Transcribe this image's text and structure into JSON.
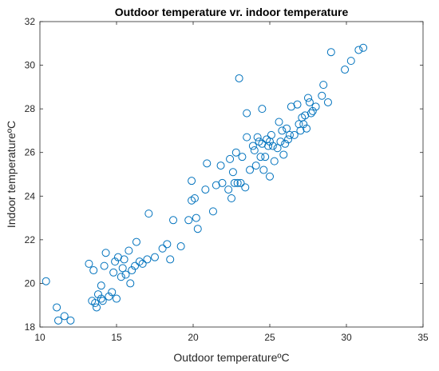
{
  "chart_data": {
    "type": "scatter",
    "title": "Outdoor temperature  vr. indoor temperature",
    "xlabel": "Outdoor temperatureºC",
    "ylabel": "Indoor temperatureºC",
    "xlim": [
      10,
      35
    ],
    "ylim": [
      18,
      32
    ],
    "xticks": [
      10,
      15,
      20,
      25,
      30,
      35
    ],
    "yticks": [
      18,
      20,
      22,
      24,
      26,
      28,
      30,
      32
    ],
    "grid": false,
    "marker_color": "#0072BD",
    "axis_color": "#262626",
    "points": [
      [
        10.4,
        20.1
      ],
      [
        11.1,
        18.9
      ],
      [
        11.2,
        18.3
      ],
      [
        11.6,
        18.5
      ],
      [
        12.0,
        18.3
      ],
      [
        13.2,
        20.9
      ],
      [
        13.4,
        19.2
      ],
      [
        13.5,
        20.6
      ],
      [
        13.6,
        19.1
      ],
      [
        13.7,
        18.9
      ],
      [
        13.8,
        19.5
      ],
      [
        14.0,
        19.3
      ],
      [
        14.0,
        19.9
      ],
      [
        14.1,
        19.2
      ],
      [
        14.2,
        20.8
      ],
      [
        14.3,
        21.4
      ],
      [
        14.5,
        19.4
      ],
      [
        14.7,
        19.6
      ],
      [
        14.8,
        20.5
      ],
      [
        14.9,
        21.0
      ],
      [
        15.0,
        19.3
      ],
      [
        15.1,
        21.2
      ],
      [
        15.3,
        20.3
      ],
      [
        15.4,
        20.7
      ],
      [
        15.5,
        21.1
      ],
      [
        15.6,
        20.4
      ],
      [
        15.8,
        21.5
      ],
      [
        15.9,
        20.0
      ],
      [
        16.0,
        20.6
      ],
      [
        16.2,
        20.8
      ],
      [
        16.3,
        21.9
      ],
      [
        16.5,
        21.0
      ],
      [
        16.7,
        20.9
      ],
      [
        17.0,
        21.1
      ],
      [
        17.1,
        23.2
      ],
      [
        17.5,
        21.2
      ],
      [
        18.0,
        21.6
      ],
      [
        18.3,
        21.8
      ],
      [
        18.5,
        21.1
      ],
      [
        18.7,
        22.9
      ],
      [
        19.2,
        21.7
      ],
      [
        19.7,
        22.9
      ],
      [
        19.9,
        24.7
      ],
      [
        19.9,
        23.8
      ],
      [
        20.1,
        23.9
      ],
      [
        20.2,
        23.0
      ],
      [
        20.3,
        22.5
      ],
      [
        20.8,
        24.3
      ],
      [
        20.9,
        25.5
      ],
      [
        21.3,
        23.3
      ],
      [
        21.5,
        24.5
      ],
      [
        21.8,
        25.4
      ],
      [
        21.9,
        24.6
      ],
      [
        22.3,
        24.3
      ],
      [
        22.4,
        25.7
      ],
      [
        22.5,
        23.9
      ],
      [
        22.6,
        25.1
      ],
      [
        22.7,
        24.6
      ],
      [
        22.8,
        26.0
      ],
      [
        22.9,
        24.6
      ],
      [
        23.0,
        29.4
      ],
      [
        23.1,
        24.6
      ],
      [
        23.2,
        25.8
      ],
      [
        23.4,
        24.4
      ],
      [
        23.5,
        26.7
      ],
      [
        23.5,
        27.8
      ],
      [
        23.7,
        25.2
      ],
      [
        23.9,
        26.3
      ],
      [
        24.0,
        26.1
      ],
      [
        24.1,
        25.4
      ],
      [
        24.2,
        26.7
      ],
      [
        24.3,
        26.5
      ],
      [
        24.4,
        25.8
      ],
      [
        24.5,
        26.4
      ],
      [
        24.5,
        28.0
      ],
      [
        24.6,
        25.2
      ],
      [
        24.7,
        25.8
      ],
      [
        24.8,
        26.6
      ],
      [
        24.9,
        26.3
      ],
      [
        25.0,
        26.5
      ],
      [
        25.0,
        24.9
      ],
      [
        25.1,
        26.8
      ],
      [
        25.2,
        26.3
      ],
      [
        25.3,
        25.6
      ],
      [
        25.5,
        26.2
      ],
      [
        25.6,
        27.4
      ],
      [
        25.7,
        26.5
      ],
      [
        25.8,
        27.0
      ],
      [
        25.9,
        25.9
      ],
      [
        26.0,
        26.4
      ],
      [
        26.1,
        27.1
      ],
      [
        26.2,
        26.6
      ],
      [
        26.3,
        26.8
      ],
      [
        26.4,
        28.1
      ],
      [
        26.6,
        26.8
      ],
      [
        26.8,
        28.2
      ],
      [
        26.9,
        27.3
      ],
      [
        27.0,
        27.0
      ],
      [
        27.1,
        27.6
      ],
      [
        27.2,
        27.3
      ],
      [
        27.3,
        27.7
      ],
      [
        27.4,
        27.1
      ],
      [
        27.5,
        28.5
      ],
      [
        27.6,
        28.3
      ],
      [
        27.7,
        27.8
      ],
      [
        27.8,
        27.9
      ],
      [
        28.0,
        28.1
      ],
      [
        28.4,
        28.6
      ],
      [
        28.5,
        29.1
      ],
      [
        28.8,
        28.3
      ],
      [
        29.0,
        30.6
      ],
      [
        29.9,
        29.8
      ],
      [
        30.3,
        30.2
      ],
      [
        30.8,
        30.7
      ],
      [
        31.1,
        30.8
      ]
    ]
  }
}
